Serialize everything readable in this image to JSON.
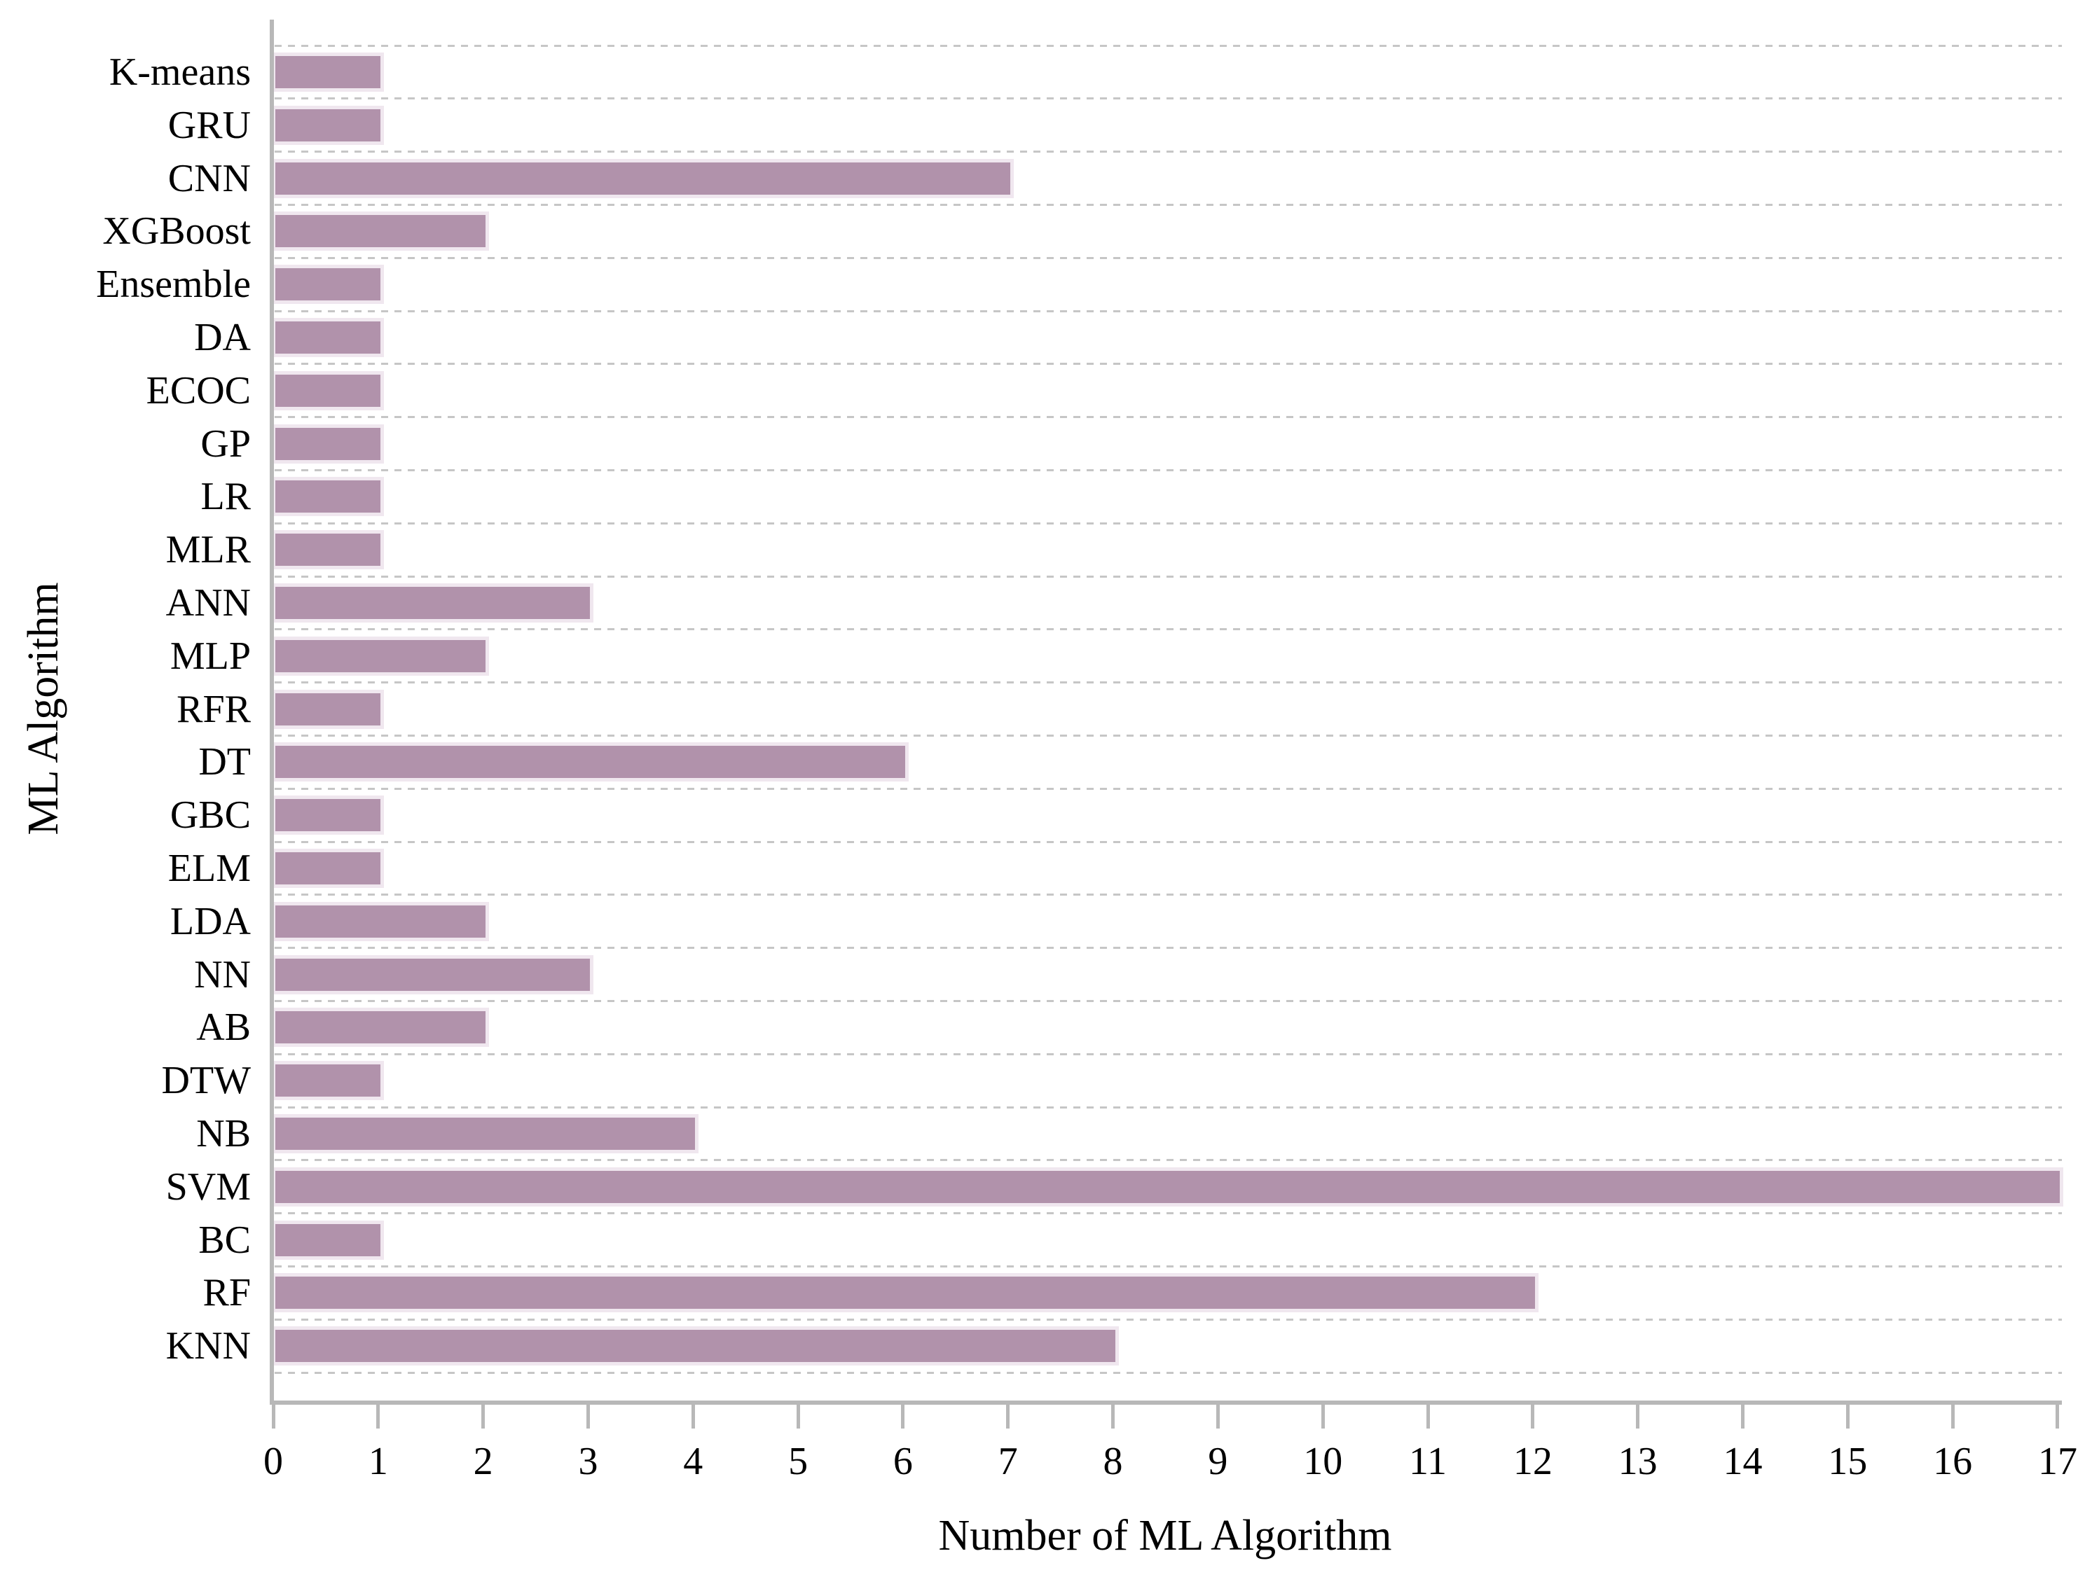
{
  "figure": {
    "x_axis_title": "Number of ML Algorithm",
    "y_axis_title": "ML Algorithm"
  },
  "chart_data": {
    "type": "bar",
    "orientation": "horizontal",
    "title": "",
    "xlabel": "Number of ML Algorithm",
    "ylabel": "ML Algorithm",
    "categories": [
      "K-means",
      "GRU",
      "CNN",
      "XGBoost",
      "Ensemble",
      "DA",
      "ECOC",
      "GP",
      "LR",
      "MLR",
      "ANN",
      "MLP",
      "RFR",
      "DT",
      "GBC",
      "ELM",
      "LDA",
      "NN",
      "AB",
      "DTW",
      "NB",
      "SVM",
      "BC",
      "RF",
      "KNN"
    ],
    "values": [
      1,
      1,
      7,
      2,
      1,
      1,
      1,
      1,
      1,
      1,
      3,
      2,
      1,
      6,
      1,
      1,
      2,
      3,
      2,
      1,
      4,
      17,
      1,
      12,
      8
    ],
    "xlim": [
      0,
      17
    ],
    "xticks": [
      "0",
      "1",
      "2",
      "3",
      "4",
      "5",
      "6",
      "7",
      "8",
      "9",
      "10",
      "11",
      "12",
      "13",
      "14",
      "15",
      "16",
      "17"
    ],
    "grid": {
      "horizontal_dashed_row_separators": true,
      "vertical_gridlines": false
    },
    "legend_position": "none",
    "colors": {
      "bar_fill": "#b192ab",
      "bar_halo": "#f0e7ef",
      "gridline": "#c6c6c6",
      "axis_line": "#b8b8b8",
      "text": "#000000",
      "background": "#ffffff"
    }
  }
}
